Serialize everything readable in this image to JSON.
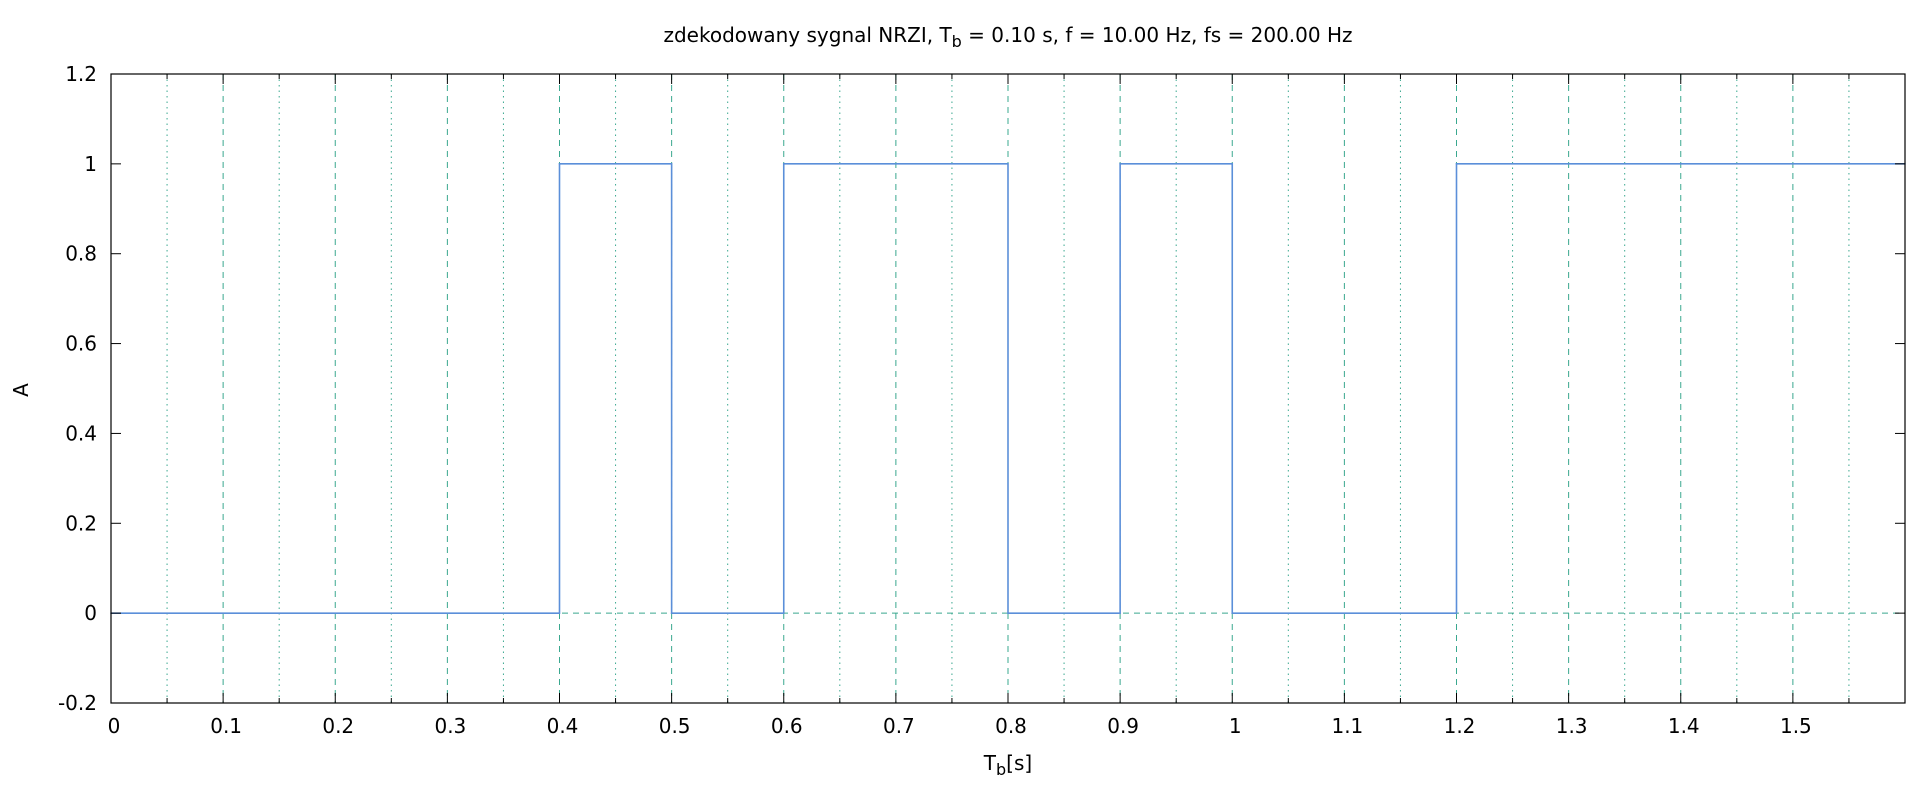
{
  "chart_data": {
    "type": "line",
    "title": {
      "prefix": "zdekodowany sygnal NRZI, T",
      "sub": "b",
      "suffix": " = 0.10 s, f = 10.00 Hz, fs = 200.00 Hz"
    },
    "xlabel": {
      "main": "T",
      "sub": "b",
      "suffix": "[s]"
    },
    "ylabel": "A",
    "xlim": [
      0,
      1.6
    ],
    "ylim": [
      -0.2,
      1.2
    ],
    "x_ticks": [
      "0",
      "0.1",
      "0.2",
      "0.3",
      "0.4",
      "0.5",
      "0.6",
      "0.7",
      "0.8",
      "0.9",
      "1",
      "1.1",
      "1.2",
      "1.3",
      "1.4",
      "1.5"
    ],
    "x_tick_values": [
      0,
      0.1,
      0.2,
      0.3,
      0.4,
      0.5,
      0.6,
      0.7,
      0.8,
      0.9,
      1.0,
      1.1,
      1.2,
      1.3,
      1.4,
      1.5
    ],
    "y_ticks": [
      "-0.2",
      "0",
      "0.2",
      "0.4",
      "0.6",
      "0.8",
      "1",
      "1.2"
    ],
    "y_tick_values": [
      -0.2,
      0,
      0.2,
      0.4,
      0.6,
      0.8,
      1.0,
      1.2
    ],
    "x_minor_step": 0.05,
    "grid": true,
    "series": [
      {
        "color": "#5b8fd9",
        "step": true,
        "x": [
          0,
          0.4,
          0.5,
          0.6,
          0.8,
          0.9,
          1.0,
          1.2,
          1.6
        ],
        "y": [
          0,
          1,
          0,
          1,
          0,
          1,
          0,
          1,
          1
        ]
      }
    ],
    "grid_color": "#3aa88f"
  }
}
